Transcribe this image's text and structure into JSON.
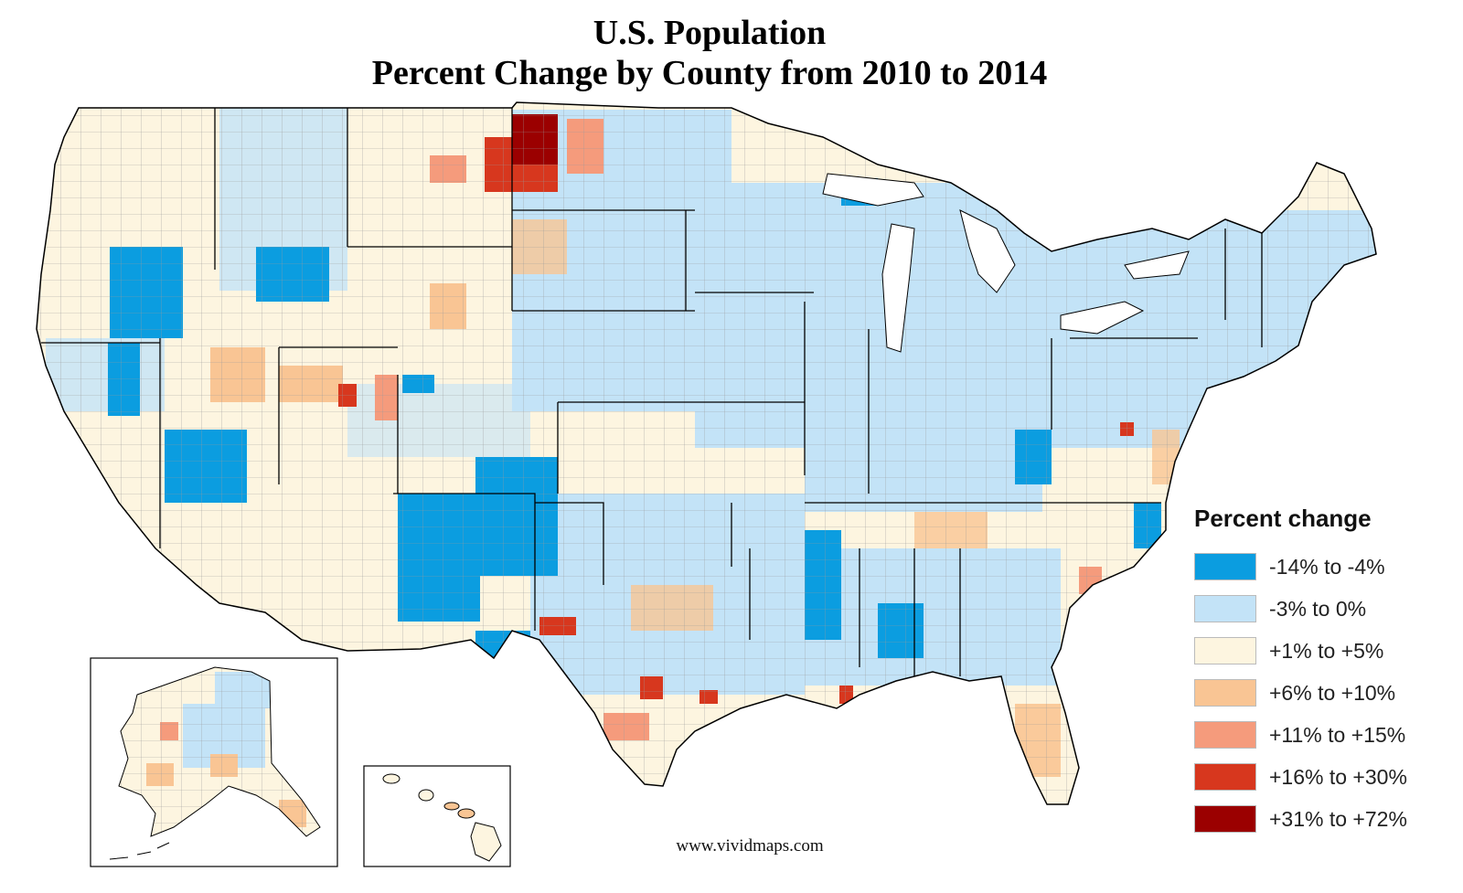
{
  "title": {
    "line1": "U.S. Population",
    "line2": "Percent Change by County from 2010 to 2014"
  },
  "legend": {
    "title": "Percent change",
    "items": [
      {
        "label": "-14% to -4%",
        "color": "#0b9de0"
      },
      {
        "label": "-3% to 0%",
        "color": "#c3e3f7"
      },
      {
        "label": "+1% to +5%",
        "color": "#fdf5e0"
      },
      {
        "label": "+6% to +10%",
        "color": "#f9c594"
      },
      {
        "label": "+11% to +15%",
        "color": "#f59b7c"
      },
      {
        "label": "+16% to +30%",
        "color": "#d7371e"
      },
      {
        "label": "+31% to +72%",
        "color": "#9b0000"
      }
    ]
  },
  "credit": "www.vividmaps.com",
  "map": {
    "regions": [
      "contiguous-us",
      "alaska-inset",
      "hawaii-inset"
    ]
  }
}
